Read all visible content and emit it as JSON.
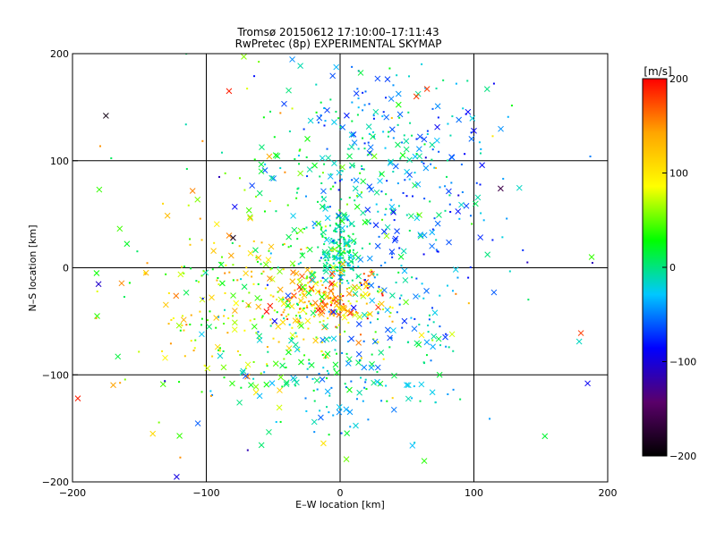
{
  "chart_data": {
    "type": "scatter",
    "title": "Tromsø 20150612 17:10:00–17:11:43",
    "subtitle": "RwPretec (8p) EXPERIMENTAL SKYMAP",
    "xlabel": "E–W location [km]",
    "ylabel": "N–S location [km]",
    "xlim": [
      -200,
      200
    ],
    "ylim": [
      -200,
      200
    ],
    "x_ticks": [
      -200,
      -100,
      0,
      100,
      200
    ],
    "y_ticks": [
      -200,
      -100,
      0,
      100,
      200
    ],
    "x_tick_labels": [
      "−200",
      "−100",
      "0",
      "100",
      "200"
    ],
    "y_tick_labels": [
      "−200",
      "−100",
      "0",
      "100",
      "200"
    ],
    "grid": true,
    "markers": [
      "×",
      "·"
    ],
    "colorbar": {
      "label": "[m/s]",
      "range": [
        -200,
        200
      ],
      "ticks": [
        200,
        100,
        0,
        -100,
        -200
      ],
      "tick_labels": [
        "200",
        "100",
        "0",
        "−100",
        "−200"
      ],
      "colormap": [
        "#000000",
        "#5a006a",
        "#0000ff",
        "#00c8ff",
        "#00ff00",
        "#ffff00",
        "#ffa500",
        "#ff0000"
      ]
    },
    "highlighted_points": [
      {
        "x": -175,
        "y": 142,
        "v": -190,
        "m": "x"
      },
      {
        "x": -196,
        "y": -122,
        "v": 190,
        "m": "x"
      },
      {
        "x": -80,
        "y": 28,
        "v": -185,
        "m": "x"
      },
      {
        "x": 120,
        "y": 74,
        "v": -160,
        "m": "x"
      },
      {
        "x": 185,
        "y": -108,
        "v": -90,
        "m": "x"
      },
      {
        "x": 180,
        "y": -61,
        "v": 180,
        "m": "x"
      },
      {
        "x": -83,
        "y": 165,
        "v": 190,
        "m": "x"
      },
      {
        "x": 57,
        "y": 160,
        "v": 180,
        "m": "x"
      },
      {
        "x": 65,
        "y": 167,
        "v": 180,
        "m": "x"
      },
      {
        "x": -140,
        "y": -155,
        "v": 110,
        "m": "x"
      },
      {
        "x": -120,
        "y": -157,
        "v": 40,
        "m": "x"
      },
      {
        "x": -182,
        "y": -5,
        "v": 30,
        "m": "x"
      },
      {
        "x": 188,
        "y": 10,
        "v": 40,
        "m": "x"
      },
      {
        "x": -180,
        "y": 73,
        "v": 40,
        "m": "x"
      },
      {
        "x": 115,
        "y": 172,
        "v": -90,
        "m": "dot"
      },
      {
        "x": 100,
        "y": 128,
        "v": -90,
        "m": "x"
      },
      {
        "x": 115,
        "y": -23,
        "v": -60,
        "m": "x"
      },
      {
        "x": 140,
        "y": 5,
        "v": -110,
        "m": "dot"
      }
    ],
    "clusters": [
      {
        "x": 0,
        "y": 15,
        "sx": 8,
        "sy": 14,
        "n": 160,
        "vmin": -30,
        "vmax": 20,
        "xf": 0.25
      },
      {
        "x": -8,
        "y": -28,
        "sx": 20,
        "sy": 14,
        "n": 170,
        "vmin": 60,
        "vmax": 200,
        "xf": 0.4
      },
      {
        "x": 30,
        "y": 110,
        "sx": 38,
        "sy": 50,
        "n": 230,
        "vmin": -80,
        "vmax": 20,
        "xf": 0.35
      },
      {
        "x": -45,
        "y": -40,
        "sx": 42,
        "sy": 38,
        "n": 170,
        "vmin": 10,
        "vmax": 140,
        "xf": 0.35
      },
      {
        "x": -20,
        "y": 60,
        "sx": 35,
        "sy": 55,
        "n": 110,
        "vmin": -10,
        "vmax": 60,
        "xf": 0.3
      },
      {
        "x": 0,
        "y": -110,
        "sx": 40,
        "sy": 30,
        "n": 150,
        "vmin": -60,
        "vmax": 30,
        "xf": 0.45
      },
      {
        "x": 40,
        "y": -30,
        "sx": 30,
        "sy": 35,
        "n": 80,
        "vmin": -80,
        "vmax": 10,
        "xf": 0.35
      },
      {
        "x": -95,
        "y": -15,
        "sx": 40,
        "sy": 60,
        "n": 100,
        "vmin": -20,
        "vmax": 160,
        "xf": 0.3
      },
      {
        "x": 70,
        "y": 60,
        "sx": 40,
        "sy": 45,
        "n": 70,
        "vmin": -90,
        "vmax": 0,
        "xf": 0.35
      },
      {
        "x": 0,
        "y": 0,
        "sx": 110,
        "sy": 110,
        "n": 90,
        "vmin": -120,
        "vmax": 160,
        "xf": 0.4
      }
    ]
  }
}
